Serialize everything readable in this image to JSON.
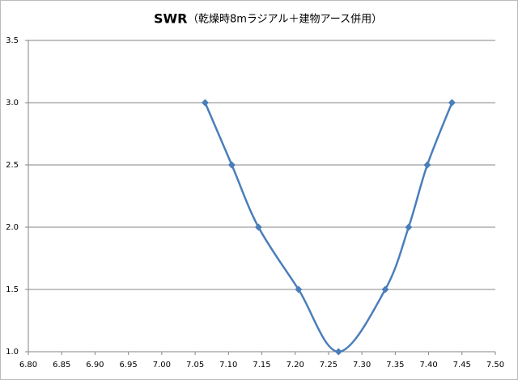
{
  "chart_data": {
    "type": "line",
    "title": "SWR",
    "subtitle": "（乾燥時8mラジアル＋建物アース併用）",
    "x": [
      7.065,
      7.105,
      7.145,
      7.205,
      7.265,
      7.335,
      7.37,
      7.398,
      7.435
    ],
    "series": [
      {
        "name": "SWR",
        "color": "#4a7ebb",
        "values": [
          3.0,
          2.5,
          2.0,
          1.5,
          1.0,
          1.5,
          2.0,
          2.5,
          3.0
        ]
      }
    ],
    "xlim": [
      6.8,
      7.5
    ],
    "xticks": [
      {
        "value": 6.8,
        "label": "6.80"
      },
      {
        "value": 6.85,
        "label": "6.85"
      },
      {
        "value": 6.9,
        "label": "6.90"
      },
      {
        "value": 6.95,
        "label": "6.95"
      },
      {
        "value": 7.0,
        "label": "7.00"
      },
      {
        "value": 7.05,
        "label": "7.05"
      },
      {
        "value": 7.1,
        "label": "7.10"
      },
      {
        "value": 7.15,
        "label": "7.15"
      },
      {
        "value": 7.2,
        "label": "7.20"
      },
      {
        "value": 7.25,
        "label": "7.25"
      },
      {
        "value": 7.3,
        "label": "7.30"
      },
      {
        "value": 7.35,
        "label": "7.35"
      },
      {
        "value": 7.4,
        "label": "7.40"
      },
      {
        "value": 7.45,
        "label": "7.45"
      },
      {
        "value": 7.5,
        "label": "7.50"
      }
    ],
    "ylim": [
      1.0,
      3.5
    ],
    "yticks": [
      {
        "value": 1.0,
        "label": "1.0"
      },
      {
        "value": 1.5,
        "label": "1.5"
      },
      {
        "value": 2.0,
        "label": "2.0"
      },
      {
        "value": 2.5,
        "label": "2.5"
      },
      {
        "value": 3.0,
        "label": "3.0"
      },
      {
        "value": 3.5,
        "label": "3.5"
      }
    ],
    "grid": true,
    "smooth": true
  }
}
